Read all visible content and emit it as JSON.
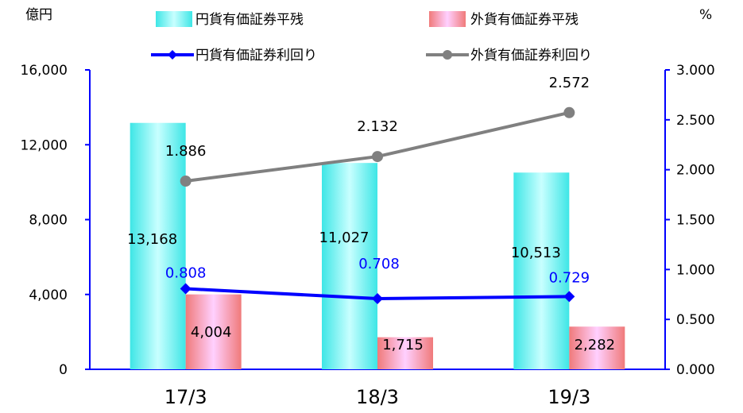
{
  "chart_data": {
    "type": "bar",
    "categories": [
      "17/3",
      "18/3",
      "19/3"
    ],
    "left_axis": {
      "unit_label": "億円",
      "ylim": [
        0,
        16000
      ],
      "ticks": [
        "0",
        "4,000",
        "8,000",
        "12,000",
        "16,000"
      ]
    },
    "right_axis": {
      "unit_label": "%",
      "ylim": [
        0,
        3.0
      ],
      "ticks": [
        "0.000",
        "0.500",
        "1.000",
        "1.500",
        "2.000",
        "2.500",
        "3.000"
      ]
    },
    "grid": false,
    "legend_position": "top",
    "series": [
      {
        "name": "円貨有価証券平残",
        "kind": "bar",
        "axis": "left",
        "values": [
          13168,
          11027,
          10513
        ],
        "labels": [
          "13,168",
          "11,027",
          "10,513"
        ],
        "color": "#40f0f0"
      },
      {
        "name": "外貨有価証券平残",
        "kind": "bar",
        "axis": "left",
        "values": [
          4004,
          1715,
          2282
        ],
        "labels": [
          "4,004",
          "1,715",
          "2,282"
        ],
        "color": "#f08080"
      },
      {
        "name": "円貨有価証券利回り",
        "kind": "line",
        "axis": "right",
        "values": [
          0.808,
          0.708,
          0.729
        ],
        "labels": [
          "0.808",
          "0.708",
          "0.729"
        ],
        "color": "#0000ff"
      },
      {
        "name": "外貨有価証券利回り",
        "kind": "line",
        "axis": "right",
        "values": [
          1.886,
          2.132,
          2.572
        ],
        "labels": [
          "1.886",
          "2.132",
          "2.572"
        ],
        "color": "#808080"
      }
    ]
  }
}
